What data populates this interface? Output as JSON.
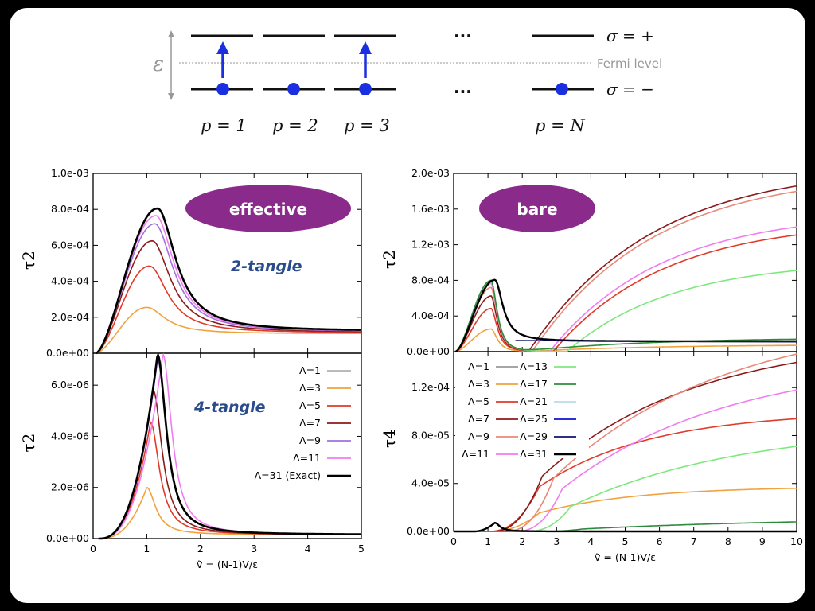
{
  "diagram": {
    "epsilon_label": "ε",
    "dots": "···",
    "fermi_label": "Fermi level",
    "sigma_plus": "σ = +",
    "sigma_minus": "σ = −",
    "site_labels": [
      "p = 1",
      "p = 2",
      "p = 3",
      "p = N"
    ]
  },
  "badges": {
    "effective": "effective",
    "bare": "bare"
  },
  "panel_labels": {
    "two_tangle": "2-tangle",
    "four_tangle": "4-tangle"
  },
  "axes": {
    "left_top": {
      "ylabel": "τ2",
      "yticks": [
        "0.0e+00",
        "2.0e-04",
        "4.0e-04",
        "6.0e-04",
        "8.0e-04",
        "1.0e-03"
      ],
      "ylim": [
        0,
        0.001
      ]
    },
    "left_bot": {
      "ylabel": "τ2",
      "yticks": [
        "0.0e+00",
        "2.0e-06",
        "4.0e-06",
        "6.0e-06"
      ],
      "ylim": [
        0,
        7.25e-06
      ]
    },
    "left_x": {
      "xlabel": "ṽ = (N-1)V/ε",
      "xticks": [
        "0",
        "1",
        "2",
        "3",
        "4",
        "5"
      ],
      "xlim": [
        0,
        5
      ]
    },
    "right_top": {
      "ylabel": "τ2",
      "yticks": [
        "0.0e+00",
        "4.0e-04",
        "8.0e-04",
        "1.2e-03",
        "1.6e-03",
        "2.0e-03"
      ],
      "ylim": [
        0,
        0.002
      ]
    },
    "right_bot": {
      "ylabel": "τ4",
      "yticks": [
        "0.0e+00",
        "4.0e-05",
        "8.0e-05",
        "1.2e-04"
      ],
      "ylim": [
        0,
        0.00015
      ]
    },
    "right_x": {
      "xlabel": "ṽ = (N-1)V/ε",
      "xticks": [
        "0",
        "1",
        "2",
        "3",
        "4",
        "5",
        "6",
        "7",
        "8",
        "9",
        "10"
      ],
      "xlim": [
        0,
        10
      ]
    }
  },
  "legend_left": [
    {
      "label": "Λ=1",
      "color": "#b0b0b0"
    },
    {
      "label": "Λ=3",
      "color": "#f0a23c"
    },
    {
      "label": "Λ=5",
      "color": "#e03a2a"
    },
    {
      "label": "Λ=7",
      "color": "#8b1a1a"
    },
    {
      "label": "Λ=9",
      "color": "#a070e0"
    },
    {
      "label": "Λ=11",
      "color": "#f07cf0"
    },
    {
      "label": "Λ=31 (Exact)",
      "color": "#000000"
    }
  ],
  "legend_right": [
    {
      "label": "Λ=1",
      "color": "#9a9a9a"
    },
    {
      "label": "Λ=3",
      "color": "#f0a23c"
    },
    {
      "label": "Λ=5",
      "color": "#e03a2a"
    },
    {
      "label": "Λ=7",
      "color": "#8b1a1a"
    },
    {
      "label": "Λ=9",
      "color": "#e8897a"
    },
    {
      "label": "Λ=11",
      "color": "#f07cf0"
    },
    {
      "label": "Λ=13",
      "color": "#7de87d"
    },
    {
      "label": "Λ=17",
      "color": "#2e8b3e"
    },
    {
      "label": "Λ=21",
      "color": "#b8dcea"
    },
    {
      "label": "Λ=25",
      "color": "#1010d0"
    },
    {
      "label": "Λ=29",
      "color": "#101070"
    },
    {
      "label": "Λ=31",
      "color": "#000000"
    }
  ],
  "chart_data": [
    {
      "type": "line",
      "title": "effective — 2-tangle",
      "xlabel": "ṽ = (N-1)V/ε",
      "ylabel": "τ2",
      "xlim": [
        0,
        5
      ],
      "ylim": [
        0,
        0.001
      ],
      "series": [
        {
          "name": "Λ=3",
          "peak_x": 1.0,
          "peak_y": 0.000255,
          "tail_y": 0.000108,
          "color": "#f0a23c"
        },
        {
          "name": "Λ=5",
          "peak_x": 1.05,
          "peak_y": 0.000485,
          "tail_y": 0.000112,
          "color": "#e03a2a"
        },
        {
          "name": "Λ=7",
          "peak_x": 1.1,
          "peak_y": 0.000625,
          "tail_y": 0.000115,
          "color": "#8b1a1a"
        },
        {
          "name": "Λ=9",
          "peak_x": 1.15,
          "peak_y": 0.00072,
          "tail_y": 0.000118,
          "color": "#a070e0"
        },
        {
          "name": "Λ=11",
          "peak_x": 1.17,
          "peak_y": 0.000765,
          "tail_y": 0.00012,
          "color": "#f07cf0"
        },
        {
          "name": "Λ=31 (Exact)",
          "peak_x": 1.2,
          "peak_y": 0.000805,
          "tail_y": 0.000122,
          "color": "#000000"
        }
      ]
    },
    {
      "type": "line",
      "title": "effective — 4-tangle",
      "xlabel": "ṽ = (N-1)V/ε",
      "ylabel": "τ2",
      "xlim": [
        0,
        5
      ],
      "ylim": [
        0,
        7.25e-06
      ],
      "series": [
        {
          "name": "Λ=3",
          "peak_x": 1.0,
          "peak_y": 2e-06,
          "color": "#f0a23c"
        },
        {
          "name": "Λ=5",
          "peak_x": 1.07,
          "peak_y": 4.55e-06,
          "color": "#e03a2a"
        },
        {
          "name": "Λ=7",
          "peak_x": 1.12,
          "peak_y": 5.8e-06,
          "color": "#8b1a1a"
        },
        {
          "name": "Λ=9",
          "peak_x": 1.2,
          "peak_y": 7e-06,
          "color": "#a070e0"
        },
        {
          "name": "Λ=11",
          "peak_x": 1.3,
          "peak_y": 7.2e-06,
          "color": "#f07cf0"
        },
        {
          "name": "Λ=31 (Exact)",
          "peak_x": 1.2,
          "peak_y": 7.2e-06,
          "color": "#000000"
        }
      ]
    },
    {
      "type": "line",
      "title": "bare — 2-tangle",
      "xlabel": "ṽ = (N-1)V/ε",
      "ylabel": "τ2",
      "xlim": [
        0,
        10
      ],
      "ylim": [
        0,
        0.002
      ],
      "series": [
        {
          "name": "Λ=3",
          "end_y": 7e-05,
          "color": "#f0a23c"
        },
        {
          "name": "Λ=5",
          "end_y": 0.00131,
          "color": "#e03a2a"
        },
        {
          "name": "Λ=7",
          "end_y": 0.00186,
          "color": "#8b1a1a"
        },
        {
          "name": "Λ=9",
          "end_y": 0.0018,
          "color": "#e8897a"
        },
        {
          "name": "Λ=11",
          "end_y": 0.0014,
          "color": "#f07cf0"
        },
        {
          "name": "Λ=13",
          "end_y": 0.00091,
          "color": "#7de87d"
        },
        {
          "name": "Λ=17",
          "end_y": 0.00014,
          "color": "#2e8b3e"
        },
        {
          "name": "Λ=31",
          "end_y": 0.000115,
          "color": "#000000"
        }
      ]
    },
    {
      "type": "line",
      "title": "bare — 4-tangle",
      "xlabel": "ṽ = (N-1)V/ε",
      "ylabel": "τ4",
      "xlim": [
        0,
        10
      ],
      "ylim": [
        0,
        0.00015
      ],
      "series": [
        {
          "name": "Λ=3",
          "end_y": 3.6e-05,
          "color": "#f0a23c"
        },
        {
          "name": "Λ=5",
          "end_y": 9.4e-05,
          "color": "#e03a2a"
        },
        {
          "name": "Λ=7",
          "end_y": 0.000141,
          "color": "#8b1a1a"
        },
        {
          "name": "Λ=9",
          "end_y": 0.000148,
          "color": "#e8897a"
        },
        {
          "name": "Λ=11",
          "end_y": 0.000118,
          "color": "#f07cf0"
        },
        {
          "name": "Λ=13",
          "end_y": 7.1e-05,
          "color": "#7de87d"
        },
        {
          "name": "Λ=17",
          "end_y": 8e-06,
          "color": "#2e8b3e"
        },
        {
          "name": "Λ=31",
          "end_y": 0.0,
          "color": "#000000"
        }
      ]
    }
  ]
}
